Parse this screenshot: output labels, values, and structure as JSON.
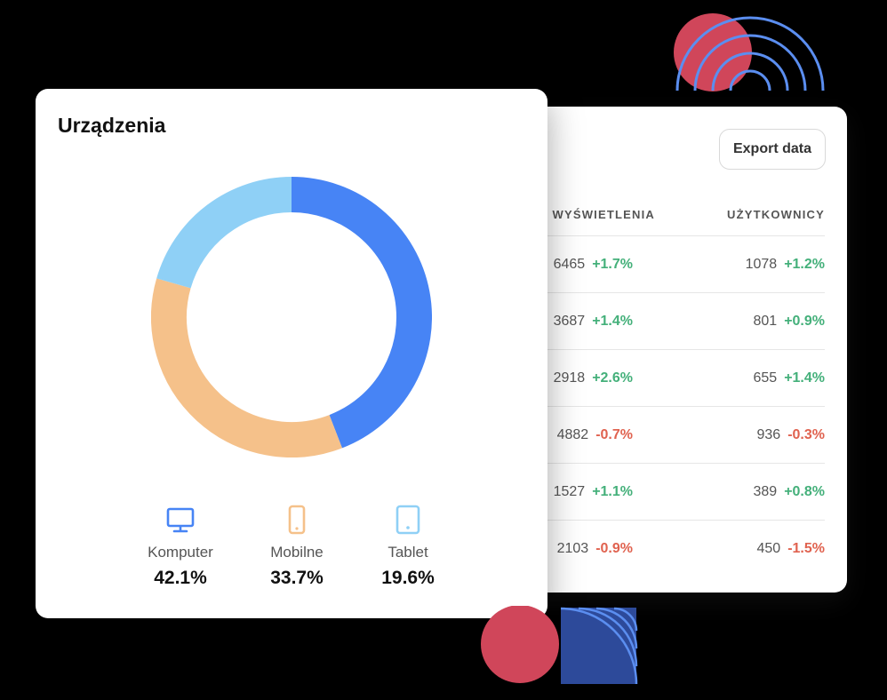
{
  "colors": {
    "computer": "#4784f5",
    "mobile": "#f5c18a",
    "tablet": "#8fd0f6",
    "positive": "#44b07a",
    "negative": "#e0624f",
    "deco_red": "#d0465a",
    "deco_blue": "#5b8ef0",
    "deco_navy": "#2d4a9a"
  },
  "devices": {
    "title": "Urządzenia",
    "items": [
      {
        "label": "Komputer",
        "value_text": "42.1%",
        "value": 42.1,
        "icon": "monitor-icon"
      },
      {
        "label": "Mobilne",
        "value_text": "33.7%",
        "value": 33.7,
        "icon": "smartphone-icon"
      },
      {
        "label": "Tablet",
        "value_text": "19.6%",
        "value": 19.6,
        "icon": "tablet-icon"
      }
    ]
  },
  "chart_data": {
    "type": "pie",
    "categories": [
      "Komputer",
      "Mobilne",
      "Tablet"
    ],
    "values": [
      42.1,
      33.7,
      19.6
    ],
    "title": "Urządzenia"
  },
  "table": {
    "export_label": "Export data",
    "headers": {
      "views": "WYŚWIETLENIA",
      "users": "UŻYTKOWNICY"
    },
    "rows": [
      {
        "views": "6465",
        "views_change": "+1.7%",
        "views_trend": "pos",
        "users": "1078",
        "users_change": "+1.2%",
        "users_trend": "pos"
      },
      {
        "views": "3687",
        "views_change": "+1.4%",
        "views_trend": "pos",
        "users": "801",
        "users_change": "+0.9%",
        "users_trend": "pos"
      },
      {
        "views": "2918",
        "views_change": "+2.6%",
        "views_trend": "pos",
        "users": "655",
        "users_change": "+1.4%",
        "users_trend": "pos"
      },
      {
        "views": "4882",
        "views_change": "-0.7%",
        "views_trend": "neg",
        "users": "936",
        "users_change": "-0.3%",
        "users_trend": "neg"
      },
      {
        "views": "1527",
        "views_change": "+1.1%",
        "views_trend": "pos",
        "users": "389",
        "users_change": "+0.8%",
        "users_trend": "pos"
      },
      {
        "views": "2103",
        "views_change": "-0.9%",
        "views_trend": "neg",
        "users": "450",
        "users_change": "-1.5%",
        "users_trend": "neg"
      }
    ]
  }
}
